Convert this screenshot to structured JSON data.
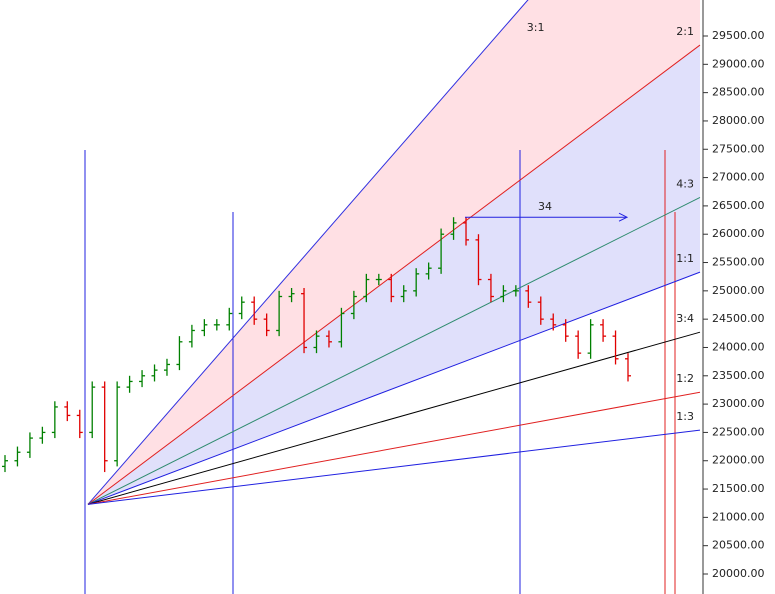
{
  "chart_data": {
    "type": "ohlc",
    "up_color": "#008000",
    "down_color": "#e00000",
    "open": [
      21900,
      22000,
      22150,
      22400,
      22500,
      22950,
      22800,
      22500,
      23300,
      22000,
      23300,
      23400,
      23500,
      23600,
      23700,
      24100,
      24300,
      24400,
      24400,
      24600,
      24800,
      24500,
      24300,
      24900,
      24950,
      24000,
      24200,
      24100,
      24600,
      24900,
      25200,
      25200,
      24900,
      25000,
      25300,
      25400,
      26000,
      26200,
      25900,
      25200,
      24900,
      25000,
      25000,
      24800,
      24500,
      24400,
      24200,
      23900,
      24400,
      24200,
      23800
    ],
    "high": [
      22100,
      22250,
      22500,
      22600,
      23050,
      23050,
      22900,
      23400,
      23400,
      23400,
      23500,
      23600,
      23700,
      23800,
      24200,
      24400,
      24500,
      24500,
      24700,
      24900,
      24900,
      24600,
      25000,
      25050,
      25050,
      24300,
      24300,
      24700,
      25000,
      25300,
      25300,
      25300,
      25100,
      25400,
      25500,
      26100,
      26300,
      26300,
      26000,
      25300,
      25100,
      25100,
      25100,
      24900,
      24600,
      24500,
      24300,
      24500,
      24500,
      24300,
      23900
    ],
    "low": [
      21800,
      21900,
      22050,
      22300,
      22400,
      22700,
      22400,
      22400,
      21800,
      21900,
      23200,
      23300,
      23400,
      23500,
      23600,
      24000,
      24200,
      24300,
      24300,
      24500,
      24400,
      24200,
      24200,
      24800,
      23900,
      23900,
      24000,
      24000,
      24500,
      24800,
      25100,
      24800,
      24800,
      24900,
      25200,
      25300,
      25900,
      25800,
      25100,
      24800,
      24800,
      24900,
      24700,
      24400,
      24300,
      24100,
      23800,
      23800,
      24100,
      23700,
      23400
    ],
    "close": [
      22000,
      22150,
      22400,
      22500,
      22950,
      22800,
      22500,
      23300,
      22000,
      23300,
      23400,
      23500,
      23600,
      23700,
      24100,
      24300,
      24400,
      24400,
      24600,
      24800,
      24500,
      24300,
      24900,
      24950,
      24000,
      24200,
      24100,
      24600,
      24900,
      25200,
      25200,
      24900,
      25000,
      25300,
      25400,
      26000,
      26200,
      25900,
      25200,
      24900,
      25000,
      25000,
      24800,
      24500,
      24400,
      24200,
      23900,
      24400,
      24200,
      23800,
      23500
    ],
    "ylim": [
      20000,
      29500
    ],
    "yticks": [
      {
        "value": 20000,
        "label": "20000.00"
      },
      {
        "value": 20500,
        "label": "20500.00"
      },
      {
        "value": 21000,
        "label": "21000.00"
      },
      {
        "value": 21500,
        "label": "21500.00"
      },
      {
        "value": 22000,
        "label": "22000.00"
      },
      {
        "value": 22500,
        "label": "22500.00"
      },
      {
        "value": 23000,
        "label": "23000.00"
      },
      {
        "value": 23500,
        "label": "23500.00"
      },
      {
        "value": 24000,
        "label": "24000.00"
      },
      {
        "value": 24500,
        "label": "24500.00"
      },
      {
        "value": 25000,
        "label": "25000.00"
      },
      {
        "value": 25500,
        "label": "25500.00"
      },
      {
        "value": 26000,
        "label": "26000.00"
      },
      {
        "value": 26500,
        "label": "26500.00"
      },
      {
        "value": 27000,
        "label": "27000.00"
      },
      {
        "value": 27500,
        "label": "27500.00"
      },
      {
        "value": 28000,
        "label": "28000.00"
      },
      {
        "value": 28500,
        "label": "28500.00"
      },
      {
        "value": 29000,
        "label": "29000.00"
      },
      {
        "value": 29500,
        "label": "29500.00"
      }
    ],
    "fan": {
      "origin": 21230,
      "lines": [
        {
          "label": "3:1",
          "end": 33620,
          "color": "#3030e0"
        },
        {
          "label": "2:1",
          "end": 29340,
          "color": "#e02020"
        },
        {
          "label": "4:3",
          "end": 26650,
          "color": "#2e8b6e"
        },
        {
          "label": "1:1",
          "end": 25330,
          "color": "#2020e0"
        },
        {
          "label": "3:4",
          "end": 24270,
          "color": "#000000"
        },
        {
          "label": "1:2",
          "end": 23210,
          "color": "#e02020"
        },
        {
          "label": "1:3",
          "end": 22540,
          "color": "#2020e0"
        }
      ]
    },
    "arrow": {
      "label": "34",
      "y": 26300
    }
  }
}
